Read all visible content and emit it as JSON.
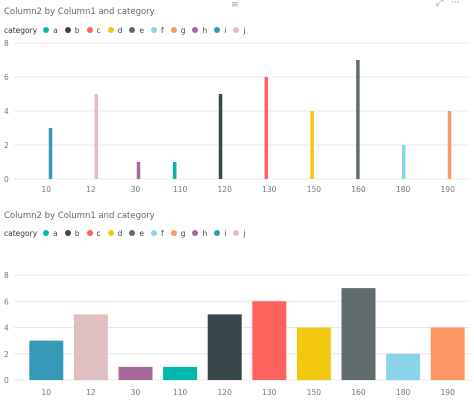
{
  "toolbar": {
    "focus_icon": "focus-mode-icon",
    "more_icon": "more-options-icon",
    "more_glyph": "···",
    "focus_glyph": "⤢"
  },
  "charts": [
    {
      "title": "Column2 by Column1 and category",
      "legend_title": "category"
    },
    {
      "title": "Column2 by Column1 and category",
      "legend_title": "category"
    }
  ],
  "legend": [
    {
      "name": "a",
      "color": "#01B8AA"
    },
    {
      "name": "b",
      "color": "#374649"
    },
    {
      "name": "c",
      "color": "#FD625E"
    },
    {
      "name": "d",
      "color": "#F2C80F"
    },
    {
      "name": "e",
      "color": "#5F6B6D"
    },
    {
      "name": "f",
      "color": "#8AD4EB"
    },
    {
      "name": "g",
      "color": "#FE9666"
    },
    {
      "name": "h",
      "color": "#A66999"
    },
    {
      "name": "i",
      "color": "#3599B8"
    },
    {
      "name": "j",
      "color": "#DFBFBF"
    }
  ],
  "chart_data": [
    {
      "type": "bar",
      "title": "Column2 by Column1 and category",
      "xlabel": "",
      "ylabel": "",
      "categories": [
        "10",
        "12",
        "30",
        "110",
        "120",
        "130",
        "150",
        "160",
        "180",
        "190"
      ],
      "yticks": [
        0,
        2,
        4,
        6,
        8
      ],
      "ylim": [
        0,
        8
      ],
      "grid": true,
      "legend_position": "top-left",
      "bars": [
        {
          "x": "10",
          "category": "i",
          "value": 3,
          "color": "#3599B8"
        },
        {
          "x": "12",
          "category": "j",
          "value": 5,
          "color": "#DFBFBF"
        },
        {
          "x": "30",
          "category": "h",
          "value": 1,
          "color": "#A66999"
        },
        {
          "x": "110",
          "category": "a",
          "value": 1,
          "color": "#01B8AA"
        },
        {
          "x": "120",
          "category": "b",
          "value": 5,
          "color": "#374649"
        },
        {
          "x": "130",
          "category": "c",
          "value": 6,
          "color": "#FD625E"
        },
        {
          "x": "150",
          "category": "d",
          "value": 4,
          "color": "#F2C80F"
        },
        {
          "x": "160",
          "category": "e",
          "value": 7,
          "color": "#5F6B6D"
        },
        {
          "x": "180",
          "category": "f",
          "value": 2,
          "color": "#8AD4EB"
        },
        {
          "x": "190",
          "category": "g",
          "value": 4,
          "color": "#FE9666"
        }
      ]
    },
    {
      "type": "bar",
      "title": "Column2 by Column1 and category",
      "xlabel": "",
      "ylabel": "",
      "categories": [
        "10",
        "12",
        "30",
        "110",
        "120",
        "130",
        "150",
        "160",
        "180",
        "190"
      ],
      "yticks": [
        0,
        2,
        4,
        6,
        8
      ],
      "ylim": [
        0,
        8
      ],
      "grid": true,
      "legend_position": "top-left",
      "bars": [
        {
          "x": "10",
          "category": "i",
          "value": 3,
          "color": "#3599B8"
        },
        {
          "x": "12",
          "category": "j",
          "value": 5,
          "color": "#DFBFBF"
        },
        {
          "x": "30",
          "category": "h",
          "value": 1,
          "color": "#A66999"
        },
        {
          "x": "110",
          "category": "a",
          "value": 1,
          "color": "#01B8AA"
        },
        {
          "x": "120",
          "category": "b",
          "value": 5,
          "color": "#374649"
        },
        {
          "x": "130",
          "category": "c",
          "value": 6,
          "color": "#FD625E"
        },
        {
          "x": "150",
          "category": "d",
          "value": 4,
          "color": "#F2C80F"
        },
        {
          "x": "160",
          "category": "e",
          "value": 7,
          "color": "#5F6B6D"
        },
        {
          "x": "180",
          "category": "f",
          "value": 2,
          "color": "#8AD4EB"
        },
        {
          "x": "190",
          "category": "g",
          "value": 4,
          "color": "#FE9666"
        }
      ]
    }
  ]
}
